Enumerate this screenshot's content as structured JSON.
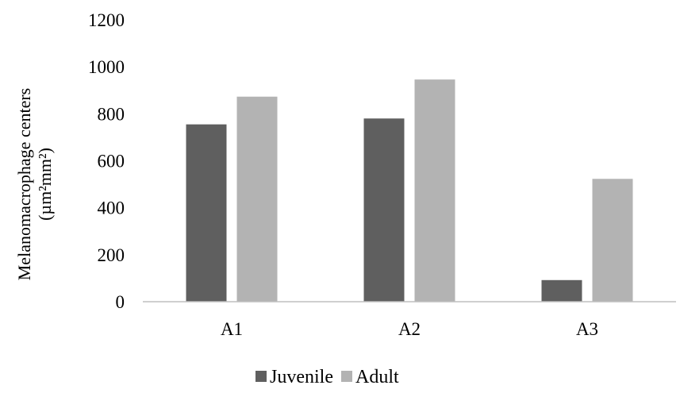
{
  "chart_data": {
    "type": "bar",
    "title": "",
    "xlabel": "",
    "ylabel_lines": [
      "Melanomacrophage centers",
      "(µm²mm²)"
    ],
    "categories": [
      "A1",
      "A2",
      "A3"
    ],
    "series": [
      {
        "name": "Juvenile",
        "color": "#5f5f5f",
        "values": [
          755,
          780,
          92
        ]
      },
      {
        "name": "Adult",
        "color": "#b3b3b3",
        "values": [
          873,
          946,
          523
        ]
      }
    ],
    "ylim": [
      0,
      1200
    ],
    "yticks": [
      "0",
      "200",
      "400",
      "600",
      "800",
      "1000",
      "1200"
    ],
    "grid": false,
    "legend_position": "bottom"
  }
}
